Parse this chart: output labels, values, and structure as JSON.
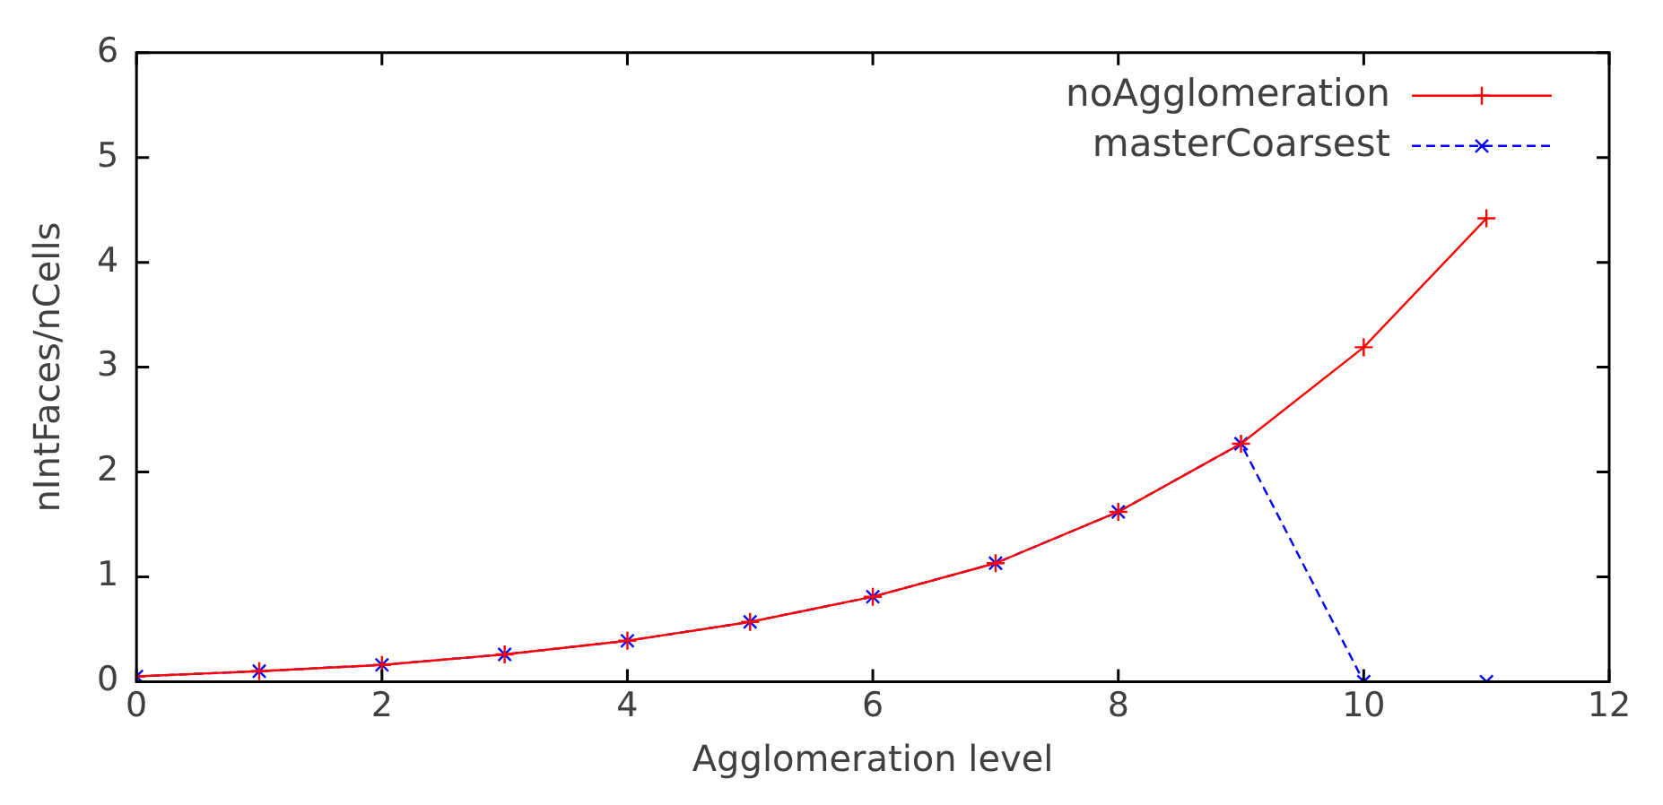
{
  "chart_data": {
    "type": "line",
    "xlabel": "Agglomeration level",
    "ylabel": "nIntFaces/nCells",
    "x": [
      0,
      1,
      2,
      3,
      4,
      5,
      6,
      7,
      8,
      9,
      10,
      11
    ],
    "series": [
      {
        "name": "noAgglomeration",
        "color": "#ff0000",
        "line_style": "solid",
        "marker": "cross",
        "values": [
          0.05,
          0.1,
          0.16,
          0.26,
          0.39,
          0.57,
          0.81,
          1.13,
          1.62,
          2.27,
          3.19,
          4.42
        ]
      },
      {
        "name": "masterCoarsest",
        "color": "#0000ff",
        "line_style": "dashed",
        "marker": "cross",
        "values": [
          0.05,
          0.1,
          0.16,
          0.26,
          0.39,
          0.57,
          0.81,
          1.13,
          1.62,
          2.27,
          0,
          0
        ]
      }
    ],
    "xlim": [
      0,
      12
    ],
    "xticks": [
      0,
      2,
      4,
      6,
      8,
      10,
      12
    ],
    "ylim": [
      0,
      6
    ],
    "yticks": [
      0,
      1,
      2,
      3,
      4,
      5,
      6
    ],
    "grid": false,
    "legend": "top right"
  }
}
